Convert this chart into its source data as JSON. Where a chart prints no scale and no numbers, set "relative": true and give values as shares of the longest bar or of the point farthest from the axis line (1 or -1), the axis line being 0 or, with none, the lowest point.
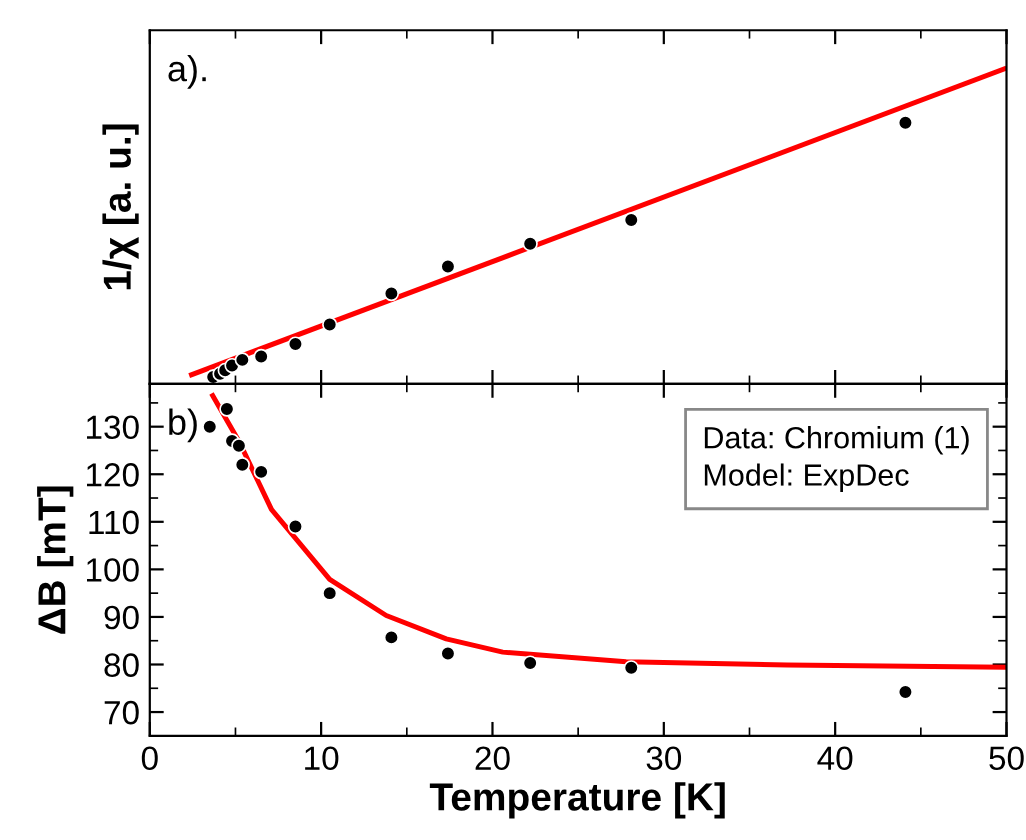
{
  "chart_data": [
    {
      "type": "scatter",
      "relative": true,
      "ylabel": "1/χ [a. u.]",
      "annotations": [
        "a)."
      ],
      "xlim": [
        0,
        50
      ],
      "xticks": [
        0,
        10,
        20,
        30,
        40,
        50
      ],
      "tick_labels": false,
      "legend": false,
      "grid": false,
      "series": [
        {
          "marker": "circle",
          "color": "#000000",
          "x": [
            3.7,
            4.1,
            4.4,
            4.8,
            5.4,
            6.5,
            8.5,
            10.5,
            14.1,
            17.4,
            22.2,
            28.1,
            44.1
          ],
          "values": [
            0.022,
            0.032,
            0.043,
            0.058,
            0.076,
            0.087,
            0.126,
            0.188,
            0.286,
            0.372,
            0.444,
            0.519,
            0.827
          ]
        },
        {
          "type": "line",
          "color": "#ff0000",
          "x": [
            2.3,
            50
          ],
          "values": [
            0.026,
            1.0
          ]
        }
      ]
    },
    {
      "type": "scatter",
      "ylabel": "ΔB [mT]",
      "xlabel": "Temperature [K]",
      "annotations": [
        "b)",
        "Data: Chromium (1)",
        "Model: ExpDec"
      ],
      "xlim": [
        0,
        50
      ],
      "xticks": [
        0,
        10,
        20,
        30,
        40,
        50
      ],
      "ylim": [
        65,
        139
      ],
      "yticks": [
        70,
        80,
        90,
        100,
        110,
        120,
        130
      ],
      "legend": false,
      "grid": false,
      "series": [
        {
          "marker": "circle",
          "color": "#000000",
          "x": [
            3.5,
            4.5,
            4.8,
            5.2,
            5.4,
            6.5,
            8.5,
            10.5,
            14.1,
            17.4,
            22.2,
            28.1,
            44.1
          ],
          "values": [
            130,
            133.7,
            127,
            126,
            122,
            120.5,
            109,
            95,
            85.7,
            82.3,
            80.3,
            79.3,
            74.2
          ]
        },
        {
          "type": "line",
          "color": "#ff0000",
          "x": [
            3.6,
            5.25,
            7.1,
            10.5,
            13.8,
            17.3,
            20.6,
            27.8,
            37.2,
            50
          ],
          "values": [
            137,
            126.6,
            112.6,
            97.9,
            90.3,
            85.4,
            82.6,
            80.6,
            79.9,
            79.4
          ]
        }
      ]
    }
  ]
}
